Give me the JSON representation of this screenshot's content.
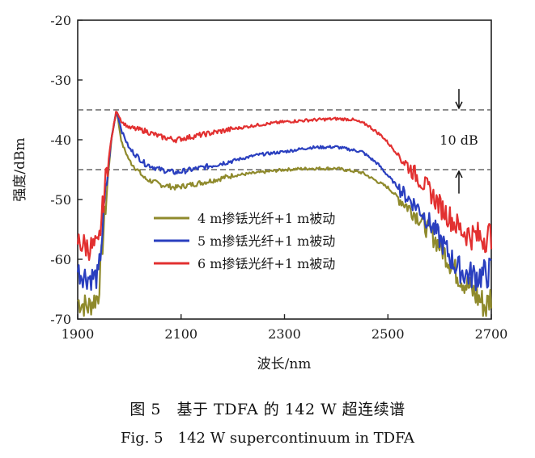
{
  "chart_data": {
    "type": "line",
    "title": "",
    "xlabel": "波长/nm",
    "ylabel": "强度/dBm",
    "xlim": [
      1900,
      2700
    ],
    "ylim": [
      -70,
      -20
    ],
    "xticks": [
      1900,
      2100,
      2300,
      2500,
      2700
    ],
    "yticks": [
      -70,
      -60,
      -50,
      -40,
      -30,
      -20
    ],
    "legend_position": "center-left",
    "series": [
      {
        "name": "4 m掺铥光纤+1 m被动",
        "color": "#8f8a2c",
        "x": [
          1900,
          1920,
          1940,
          1955,
          1965,
          1975,
          1985,
          2000,
          2030,
          2060,
          2090,
          2120,
          2150,
          2200,
          2250,
          2300,
          2350,
          2400,
          2450,
          2500,
          2530,
          2560,
          2590,
          2610,
          2630,
          2650,
          2670,
          2690,
          2700
        ],
        "values": [
          -67,
          -68,
          -66,
          -50,
          -40,
          -35,
          -40.5,
          -43.5,
          -46.5,
          -47.5,
          -48,
          -47.5,
          -47,
          -46,
          -45.5,
          -45,
          -44.8,
          -44.8,
          -45.5,
          -48,
          -50.5,
          -53,
          -56.5,
          -59,
          -62,
          -64,
          -66,
          -68,
          -66
        ]
      },
      {
        "name": "5 m掺铥光纤+1 m被动",
        "color": "#2a3fbf",
        "x": [
          1900,
          1920,
          1940,
          1955,
          1965,
          1975,
          1985,
          2000,
          2030,
          2060,
          2090,
          2120,
          2150,
          2200,
          2250,
          2300,
          2350,
          2400,
          2450,
          2480,
          2500,
          2530,
          2560,
          2590,
          2610,
          2630,
          2650,
          2670,
          2690,
          2700
        ],
        "values": [
          -62,
          -63,
          -63,
          -48,
          -40,
          -35,
          -38.5,
          -41.5,
          -44,
          -45,
          -45.5,
          -45,
          -44.5,
          -43.5,
          -42.5,
          -42,
          -41.3,
          -41.2,
          -42,
          -44,
          -46,
          -49,
          -51.5,
          -55,
          -58,
          -61,
          -62.5,
          -62.8,
          -62.5,
          -62
        ]
      },
      {
        "name": "6 m掺铥光纤+1 m被动",
        "color": "#e23030",
        "x": [
          1900,
          1920,
          1940,
          1955,
          1965,
          1975,
          1985,
          2000,
          2030,
          2060,
          2090,
          2120,
          2150,
          2200,
          2250,
          2300,
          2350,
          2400,
          2430,
          2460,
          2490,
          2520,
          2550,
          2580,
          2600,
          2620,
          2640,
          2660,
          2680,
          2700
        ],
        "values": [
          -57,
          -58,
          -58,
          -46,
          -40,
          -35,
          -37,
          -38,
          -38.5,
          -39.5,
          -40,
          -39.5,
          -39,
          -38.2,
          -37.5,
          -37,
          -36.7,
          -36.5,
          -36.6,
          -37.5,
          -39.5,
          -42.5,
          -45.5,
          -48.5,
          -51,
          -53,
          -55,
          -56,
          -56.3,
          -56
        ]
      }
    ],
    "reference_lines": [
      -35,
      -45
    ],
    "annotation": "10 dB"
  },
  "caption_zh": "图 5　基于 TDFA 的 142 W 超连续谱",
  "caption_en": "Fig. 5　142 W supercontinuum in TDFA"
}
